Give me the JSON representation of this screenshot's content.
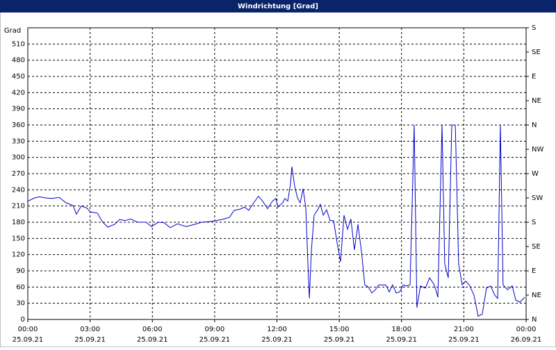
{
  "chart_data": {
    "type": "line",
    "title": "Windrichtung [Grad]",
    "ylabel": "Grad",
    "xlim": [
      0,
      24
    ],
    "ylim": [
      0,
      540
    ],
    "y2lim": [
      0,
      540
    ],
    "xticks": [
      {
        "value": 0,
        "label": "00:00"
      },
      {
        "value": 3,
        "label": "03:00"
      },
      {
        "value": 6,
        "label": "06:00"
      },
      {
        "value": 9,
        "label": "09:00"
      },
      {
        "value": 12,
        "label": "12:00"
      },
      {
        "value": 15,
        "label": "15:00"
      },
      {
        "value": 18,
        "label": "18:00"
      },
      {
        "value": 21,
        "label": "21:00"
      },
      {
        "value": 24,
        "label": "00:00"
      }
    ],
    "xtick_dates": [
      "25.09.21",
      "25.09.21",
      "25.09.21",
      "25.09.21",
      "25.09.21",
      "25.09.21",
      "25.09.21",
      "25.09.21",
      "26.09.21"
    ],
    "yticks": [
      0,
      30,
      60,
      90,
      120,
      150,
      180,
      210,
      240,
      270,
      300,
      330,
      360,
      390,
      420,
      450,
      480,
      510
    ],
    "y2ticks": [
      {
        "value": 0,
        "label": "N"
      },
      {
        "value": 45,
        "label": "NE"
      },
      {
        "value": 90,
        "label": "E"
      },
      {
        "value": 135,
        "label": "SE"
      },
      {
        "value": 180,
        "label": "S"
      },
      {
        "value": 225,
        "label": "SW"
      },
      {
        "value": 270,
        "label": "W"
      },
      {
        "value": 315,
        "label": "NW"
      },
      {
        "value": 360,
        "label": "N"
      },
      {
        "value": 405,
        "label": "NE"
      },
      {
        "value": 450,
        "label": "E"
      },
      {
        "value": 495,
        "label": "SE"
      },
      {
        "value": 540,
        "label": "S"
      }
    ],
    "grid": true,
    "x": [
      0,
      0.33,
      0.57,
      0.84,
      1.17,
      1.51,
      1.84,
      2.18,
      2.34,
      2.58,
      2.85,
      3.01,
      3.35,
      3.61,
      3.85,
      4.18,
      4.42,
      4.69,
      4.95,
      5.29,
      5.69,
      5.96,
      6.29,
      6.56,
      6.86,
      7.2,
      7.63,
      8.03,
      8.37,
      8.7,
      9.1,
      9.44,
      9.71,
      9.94,
      10.21,
      10.44,
      10.64,
      10.88,
      11.11,
      11.31,
      11.55,
      11.78,
      11.95,
      12.05,
      12.28,
      12.38,
      12.52,
      12.65,
      12.72,
      12.85,
      12.99,
      13.12,
      13.26,
      13.39,
      13.49,
      13.56,
      13.66,
      13.79,
      13.96,
      14.09,
      14.23,
      14.39,
      14.56,
      14.73,
      14.9,
      15.06,
      15.23,
      15.4,
      15.56,
      15.73,
      15.9,
      16.07,
      16.23,
      16.4,
      16.57,
      16.74,
      16.9,
      17.24,
      17.41,
      17.57,
      17.74,
      17.91,
      18.08,
      18.24,
      18.41,
      18.61,
      18.74,
      18.91,
      19.15,
      19.35,
      19.58,
      19.75,
      19.95,
      20.08,
      20.25,
      20.42,
      20.59,
      20.75,
      20.92,
      21.09,
      21.26,
      21.49,
      21.69,
      21.89,
      22.09,
      22.29,
      22.49,
      22.63,
      22.76,
      22.89,
      23.1,
      23.33,
      23.5,
      23.7,
      23.93
    ],
    "series": [
      {
        "color": "#0000cc",
        "values": [
          219,
          225,
          227,
          225,
          224,
          226,
          216,
          211,
          195,
          210,
          206,
          199,
          197,
          180,
          171,
          176,
          185,
          183,
          186,
          180,
          180,
          172,
          180,
          179,
          170,
          177,
          172,
          176,
          180,
          181,
          183,
          186,
          189,
          202,
          204,
          208,
          202,
          216,
          228,
          219,
          205,
          219,
          224,
          208,
          216,
          224,
          219,
          251,
          283,
          247,
          225,
          216,
          242,
          206,
          103,
          39,
          129,
          193,
          203,
          213,
          193,
          203,
          183,
          183,
          141,
          107,
          193,
          167,
          186,
          129,
          176,
          126,
          64,
          60,
          49,
          55,
          64,
          64,
          51,
          64,
          49,
          51,
          64,
          62,
          64,
          360,
          22,
          62,
          58,
          77,
          64,
          41,
          360,
          103,
          77,
          360,
          360,
          103,
          64,
          71,
          64,
          45,
          6,
          10,
          58,
          62,
          45,
          39,
          360,
          64,
          55,
          62,
          36,
          32,
          41
        ]
      }
    ]
  }
}
